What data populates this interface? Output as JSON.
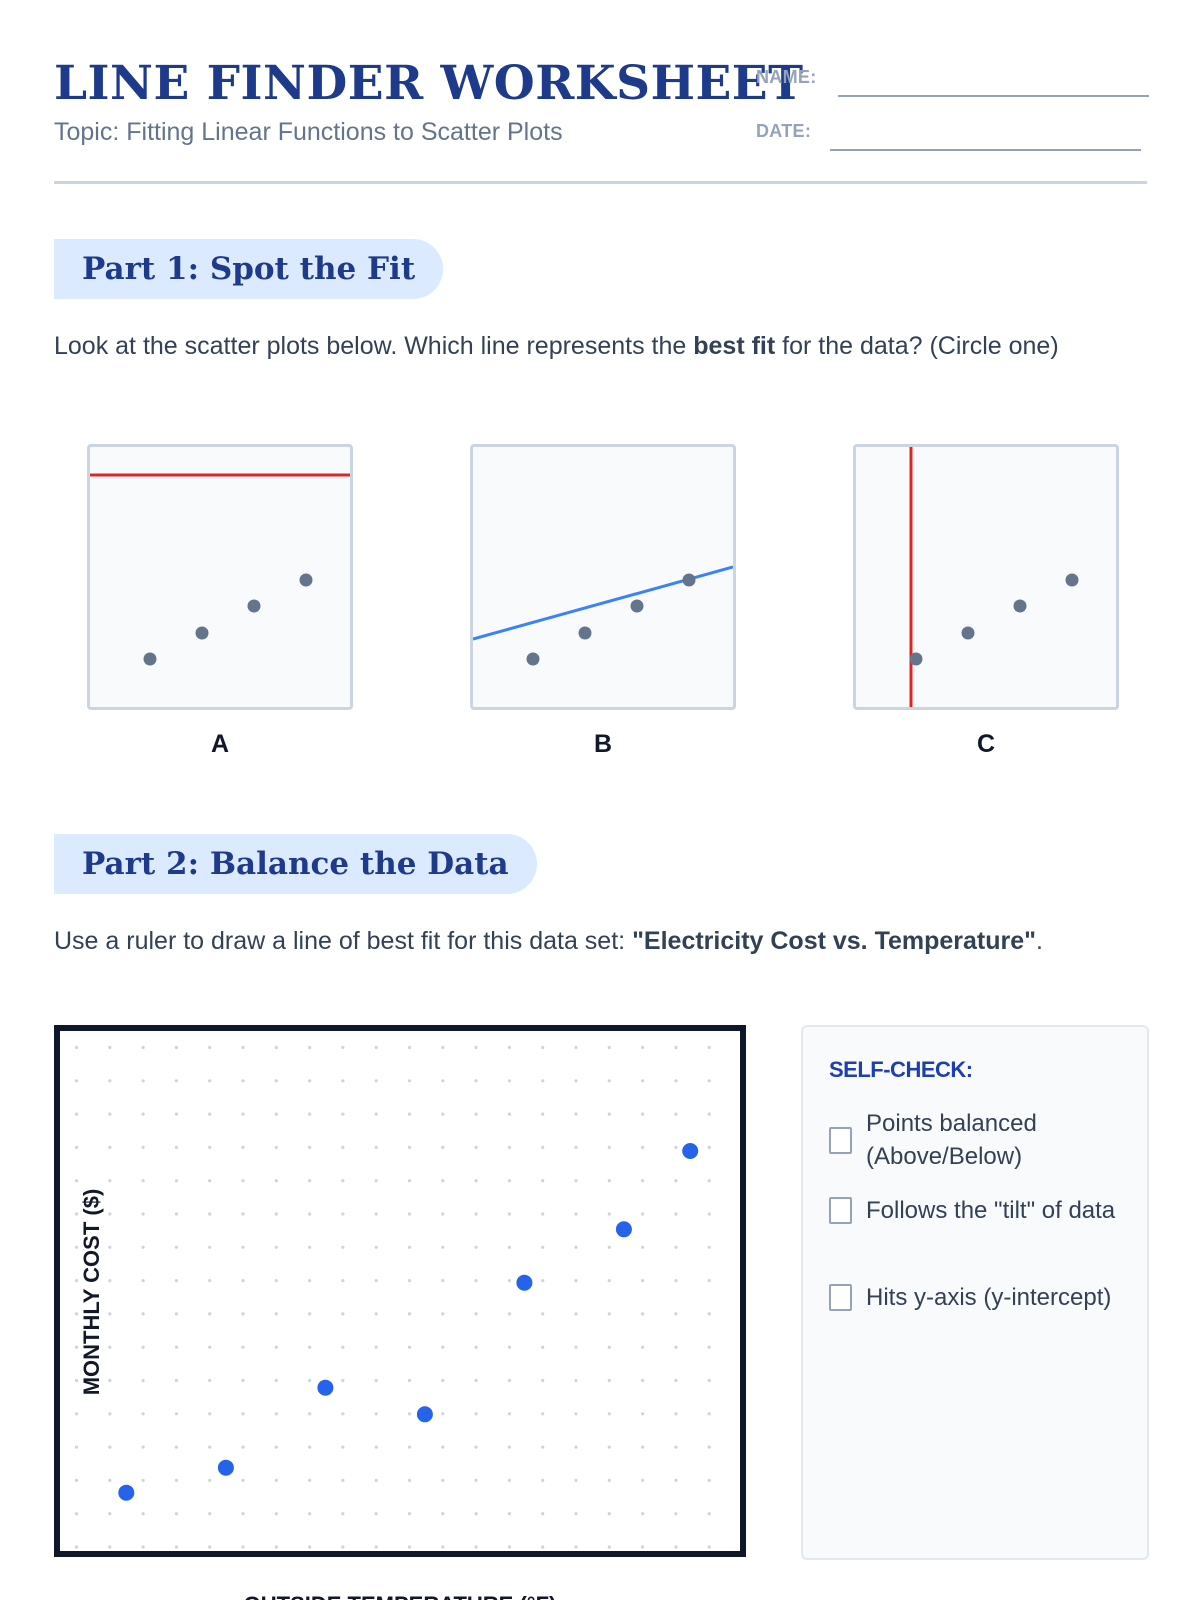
{
  "header": {
    "title": "LINE FINDER WORKSHEET",
    "topic": "Topic: Fitting Linear Functions to Scatter Plots",
    "name_label": "NAME:",
    "date_label": "DATE:"
  },
  "part1": {
    "title": "Part 1: Spot the Fit",
    "instruction_before": "Look at the scatter plots below. Which line represents the ",
    "instruction_bold": "best fit",
    "instruction_after": " for the data? (Circle one)",
    "options": [
      {
        "label": "A",
        "line": "horizontal",
        "line_color": "#dc2626"
      },
      {
        "label": "B",
        "line": "sloped",
        "line_color": "#3b82f6"
      },
      {
        "label": "C",
        "line": "vertical",
        "line_color": "#dc2626"
      }
    ],
    "point_color": "#64748b"
  },
  "part2": {
    "title": "Part 2: Balance the Data",
    "instruction_before": "Use a ruler to draw a line of best fit for this data set: ",
    "instruction_bold": "\"Electricity Cost vs. Temperature\"",
    "instruction_after": "."
  },
  "chart_data": {
    "type": "scatter",
    "title": "",
    "xlabel": "OUTSIDE TEMPERATURE (°F)",
    "ylabel": "MONTHLY COST ($)",
    "xlim": [
      0,
      20.5
    ],
    "ylim": [
      0,
      15.6
    ],
    "grid": "dotted",
    "point_color": "#2563eb",
    "points": [
      {
        "x": 2,
        "y": 1.75
      },
      {
        "x": 5,
        "y": 2.5
      },
      {
        "x": 8,
        "y": 4.9
      },
      {
        "x": 11,
        "y": 4.1
      },
      {
        "x": 14,
        "y": 8.05
      },
      {
        "x": 17,
        "y": 9.65
      },
      {
        "x": 19,
        "y": 12
      }
    ]
  },
  "self_check": {
    "title": "SELF-CHECK:",
    "items": [
      "Points balanced (Above/Below)",
      "Follows the \"tilt\" of data",
      "Hits y-axis (y-intercept)"
    ]
  }
}
